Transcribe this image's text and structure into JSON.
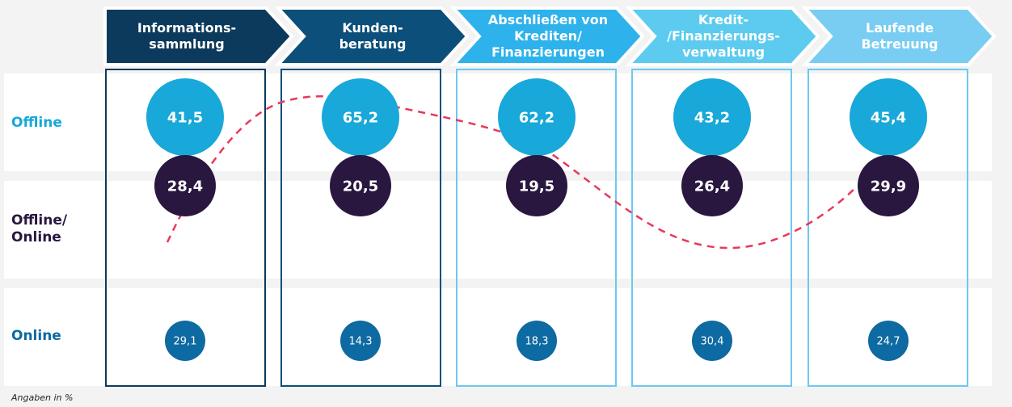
{
  "chart_data": {
    "type": "bubble",
    "categories": [
      "Informations-\nsammlung",
      "Kunden-\nberatung",
      "Abschließen von\nKrediten/\nFinanzierungen",
      "Kredit-\n/Finanzierungs-\nverwaltung",
      "Laufende\nBetreuung"
    ],
    "category_colors": [
      "#0c3a5c",
      "#0c4f7a",
      "#2eb2ec",
      "#5ccbef",
      "#79cdf2"
    ],
    "series": [
      {
        "name": "Offline",
        "values": [
          41.5,
          65.2,
          62.2,
          43.2,
          45.4
        ],
        "labels": [
          "41,5",
          "65,2",
          "62,2",
          "43,2",
          "45,4"
        ],
        "color": "#18a8d9",
        "label_color": "#18a8d9"
      },
      {
        "name": "Offline/\nOnline",
        "values": [
          28.4,
          20.5,
          19.5,
          26.4,
          29.9
        ],
        "labels": [
          "28,4",
          "20,5",
          "19,5",
          "26,4",
          "29,9"
        ],
        "color": "#2a1740",
        "label_color": "#2a1740"
      },
      {
        "name": "Online",
        "values": [
          29.1,
          14.3,
          18.3,
          30.4,
          24.7
        ],
        "labels": [
          "29,1",
          "14,3",
          "18,3",
          "30,4",
          "24,7"
        ],
        "color": "#0d6aa2",
        "label_color": "#0d6aa2"
      }
    ],
    "trend_line": {
      "style": "dashed",
      "color": "#e8385a"
    },
    "footnote": "Angaben in %"
  }
}
